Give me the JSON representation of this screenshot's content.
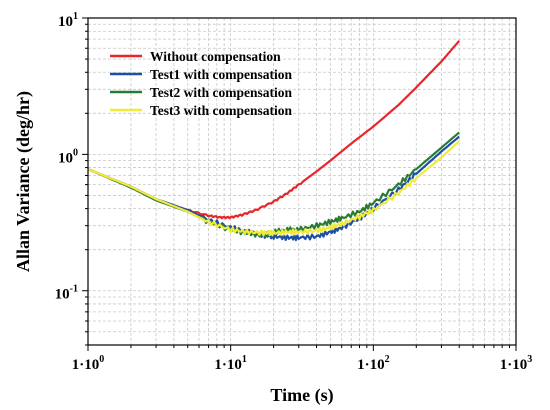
{
  "chart_data": {
    "type": "line",
    "title": "",
    "xlabel": "Time (s)",
    "ylabel": "Allan Variance (deg/hr)",
    "xscale": "log",
    "yscale": "log",
    "xlim": [
      1,
      1000
    ],
    "ylim": [
      0.04,
      10
    ],
    "grid": true,
    "legend_position": "top-left",
    "x_tick_labels": [
      {
        "value": 1,
        "base": "1·10",
        "exp": "0"
      },
      {
        "value": 10,
        "base": "1·10",
        "exp": "1"
      },
      {
        "value": 100,
        "base": "1·10",
        "exp": "2"
      },
      {
        "value": 1000,
        "base": "1·10",
        "exp": "3"
      }
    ],
    "y_tick_labels": [
      {
        "value": 10,
        "base": "10",
        "exp": "1"
      },
      {
        "value": 1,
        "base": "10",
        "exp": "0"
      },
      {
        "value": 0.1,
        "base": "10",
        "exp": "-1"
      }
    ],
    "series": [
      {
        "name": "Without compensation",
        "color": "#e8262a",
        "points": [
          [
            1,
            0.78
          ],
          [
            2,
            0.58
          ],
          [
            3,
            0.47
          ],
          [
            5,
            0.39
          ],
          [
            7,
            0.355
          ],
          [
            8.5,
            0.345
          ],
          [
            10,
            0.345
          ],
          [
            12,
            0.36
          ],
          [
            15,
            0.39
          ],
          [
            20,
            0.45
          ],
          [
            25,
            0.52
          ],
          [
            30,
            0.6
          ],
          [
            40,
            0.75
          ],
          [
            50,
            0.9
          ],
          [
            70,
            1.2
          ],
          [
            100,
            1.6
          ],
          [
            150,
            2.3
          ],
          [
            200,
            3.1
          ],
          [
            300,
            4.8
          ],
          [
            400,
            6.8
          ]
        ]
      },
      {
        "name": "Test1 with compensation",
        "color": "#1d4fa8",
        "points": [
          [
            1,
            0.78
          ],
          [
            2,
            0.58
          ],
          [
            3,
            0.47
          ],
          [
            5,
            0.39
          ],
          [
            7,
            0.33
          ],
          [
            10,
            0.29
          ],
          [
            13,
            0.27
          ],
          [
            17,
            0.255
          ],
          [
            20,
            0.25
          ],
          [
            25,
            0.245
          ],
          [
            30,
            0.245
          ],
          [
            40,
            0.25
          ],
          [
            50,
            0.27
          ],
          [
            60,
            0.29
          ],
          [
            80,
            0.34
          ],
          [
            100,
            0.4
          ],
          [
            150,
            0.55
          ],
          [
            200,
            0.72
          ],
          [
            300,
            1.05
          ],
          [
            400,
            1.35
          ]
        ]
      },
      {
        "name": "Test2 with compensation",
        "color": "#2a7a35",
        "points": [
          [
            1,
            0.78
          ],
          [
            2,
            0.57
          ],
          [
            3,
            0.46
          ],
          [
            5,
            0.38
          ],
          [
            7,
            0.32
          ],
          [
            10,
            0.28
          ],
          [
            13,
            0.265
          ],
          [
            17,
            0.255
          ],
          [
            20,
            0.27
          ],
          [
            25,
            0.28
          ],
          [
            30,
            0.28
          ],
          [
            40,
            0.3
          ],
          [
            50,
            0.32
          ],
          [
            60,
            0.34
          ],
          [
            80,
            0.38
          ],
          [
            100,
            0.44
          ],
          [
            150,
            0.6
          ],
          [
            200,
            0.78
          ],
          [
            300,
            1.12
          ],
          [
            400,
            1.45
          ]
        ]
      },
      {
        "name": "Test3 with compensation",
        "color": "#f0eb3a",
        "points": [
          [
            1,
            0.78
          ],
          [
            2,
            0.58
          ],
          [
            3,
            0.47
          ],
          [
            5,
            0.38
          ],
          [
            7,
            0.32
          ],
          [
            10,
            0.28
          ],
          [
            13,
            0.27
          ],
          [
            17,
            0.265
          ],
          [
            20,
            0.265
          ],
          [
            25,
            0.27
          ],
          [
            30,
            0.27
          ],
          [
            40,
            0.275
          ],
          [
            50,
            0.29
          ],
          [
            60,
            0.31
          ],
          [
            80,
            0.35
          ],
          [
            100,
            0.39
          ],
          [
            150,
            0.52
          ],
          [
            200,
            0.67
          ],
          [
            300,
            0.95
          ],
          [
            400,
            1.25
          ]
        ]
      }
    ]
  }
}
